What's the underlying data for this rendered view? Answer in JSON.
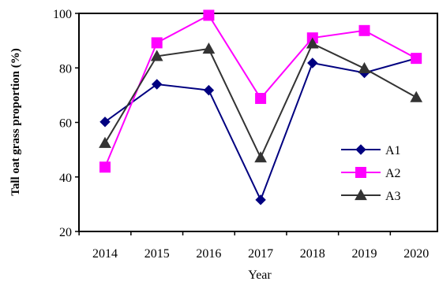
{
  "chart_data": {
    "type": "line",
    "title": "",
    "xlabel": "Year",
    "ylabel": "Tall oat grass proportion  (%)",
    "x": [
      "2014",
      "2015",
      "2016",
      "2017",
      "2018",
      "2019",
      "2020"
    ],
    "ylim": [
      20,
      100
    ],
    "yticks": [
      20,
      40,
      60,
      80,
      100
    ],
    "grid": false,
    "legend_position": "right",
    "series": [
      {
        "name": "A1",
        "color": "#000080",
        "marker": "diamond",
        "values": [
          60.2,
          74.0,
          71.8,
          31.6,
          81.8,
          78.2,
          83.5
        ]
      },
      {
        "name": "A2",
        "color": "#ff00ff",
        "marker": "square",
        "values": [
          43.6,
          89.2,
          99.3,
          68.8,
          91.0,
          93.7,
          83.5
        ]
      },
      {
        "name": "A3",
        "color": "#333333",
        "marker": "triangle",
        "values": [
          52.4,
          84.3,
          87.0,
          47.1,
          88.9,
          79.8,
          69.2
        ]
      }
    ]
  }
}
